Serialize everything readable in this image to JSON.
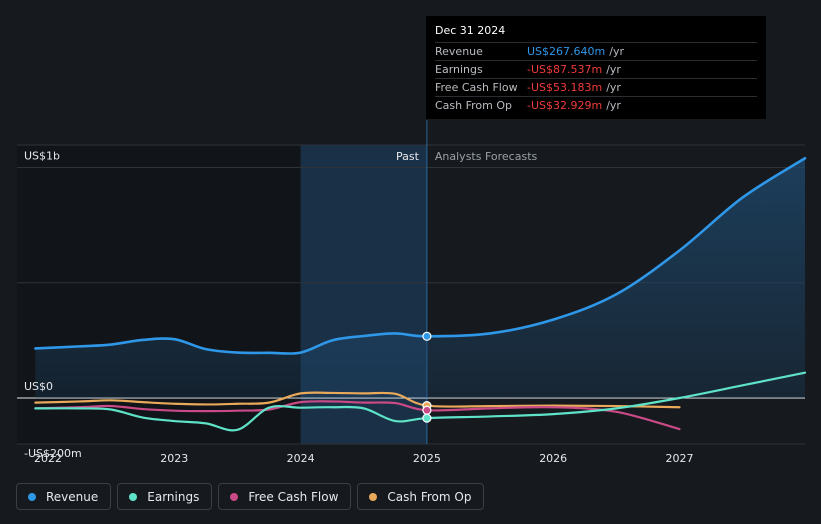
{
  "colors": {
    "background": "#161a1f",
    "revenue": "#2f97e8",
    "earnings": "#5fe3c8",
    "fcf": "#c94a86",
    "cfo": "#e8a95a",
    "past_shade": "#1d3a55",
    "grid": "#2e3338"
  },
  "chart_data": {
    "type": "line",
    "title": "",
    "y_unit": "US$m",
    "ylim": [
      -230,
      1050
    ],
    "xlim": [
      2021.9,
      2028.0
    ],
    "y_labels": [
      {
        "value": 1000,
        "text": "US$1b"
      },
      {
        "value": 0,
        "text": "US$0"
      },
      {
        "value": -200,
        "text": "-US$200m"
      }
    ],
    "x_ticks": [
      {
        "value": 2022,
        "text": "2022"
      },
      {
        "value": 2023,
        "text": "2023"
      },
      {
        "value": 2024,
        "text": "2024"
      },
      {
        "value": 2025,
        "text": "2025"
      },
      {
        "value": 2026,
        "text": "2026"
      },
      {
        "value": 2027,
        "text": "2027"
      }
    ],
    "past_label": "Past",
    "forecast_label": "Analysts Forecasts",
    "divider_x": 2025.0,
    "highlight_start": 2024.0,
    "series": [
      {
        "key": "revenue",
        "name": "Revenue",
        "color": "#2f97e8",
        "fill": true,
        "x": [
          2021.9,
          2022.25,
          2022.5,
          2022.75,
          2023.0,
          2023.25,
          2023.5,
          2023.75,
          2024.0,
          2024.25,
          2024.5,
          2024.75,
          2025.0,
          2025.5,
          2026.0,
          2026.5,
          2027.0,
          2027.5,
          2028.0
        ],
        "y": [
          215,
          224,
          232,
          252,
          255,
          212,
          197,
          196,
          197,
          250,
          269,
          280,
          267.64,
          280,
          340,
          450,
          640,
          870,
          1040
        ]
      },
      {
        "key": "earnings",
        "name": "Earnings",
        "color": "#5fe3c8",
        "fill": false,
        "x": [
          2021.9,
          2022.25,
          2022.5,
          2022.75,
          2023.0,
          2023.25,
          2023.5,
          2023.75,
          2024.0,
          2024.25,
          2024.5,
          2024.75,
          2025.0,
          2025.5,
          2026.0,
          2026.5,
          2027.0,
          2027.5,
          2028.0
        ],
        "y": [
          -45,
          -45,
          -50,
          -85,
          -100,
          -110,
          -138,
          -42,
          -42,
          -40,
          -45,
          -100,
          -87.537,
          -80,
          -70,
          -45,
          0,
          55,
          110
        ]
      },
      {
        "key": "fcf",
        "name": "Free Cash Flow",
        "color": "#c94a86",
        "fill": false,
        "x": [
          2021.9,
          2022.25,
          2022.5,
          2022.75,
          2023.0,
          2023.25,
          2023.5,
          2023.75,
          2024.0,
          2024.25,
          2024.5,
          2024.75,
          2025.0,
          2025.5,
          2026.0,
          2026.5,
          2027.0
        ],
        "y": [
          -45,
          -40,
          -35,
          -48,
          -55,
          -57,
          -55,
          -50,
          -18,
          -15,
          -20,
          -22,
          -53.183,
          -45,
          -40,
          -60,
          -135
        ]
      },
      {
        "key": "cfo",
        "name": "Cash From Op",
        "color": "#e8a95a",
        "fill": false,
        "x": [
          2021.9,
          2022.25,
          2022.5,
          2022.75,
          2023.0,
          2023.25,
          2023.5,
          2023.75,
          2024.0,
          2024.25,
          2024.5,
          2024.75,
          2025.0,
          2025.5,
          2026.0,
          2026.5,
          2027.0
        ],
        "y": [
          -20,
          -15,
          -10,
          -18,
          -25,
          -28,
          -25,
          -20,
          20,
          22,
          20,
          18,
          -32.929,
          -35,
          -33,
          -35,
          -40
        ]
      }
    ]
  },
  "tooltip": {
    "date": "Dec 31 2024",
    "rows": [
      {
        "label": "Revenue",
        "value": "US$267.640m",
        "unit": "/yr",
        "color": "#2f97e8"
      },
      {
        "label": "Earnings",
        "value": "-US$87.537m",
        "unit": "/yr",
        "color": "#ef3b3b"
      },
      {
        "label": "Free Cash Flow",
        "value": "-US$53.183m",
        "unit": "/yr",
        "color": "#ef3b3b"
      },
      {
        "label": "Cash From Op",
        "value": "-US$32.929m",
        "unit": "/yr",
        "color": "#ef3b3b"
      }
    ]
  },
  "legend": [
    {
      "label": "Revenue",
      "color": "#2f97e8"
    },
    {
      "label": "Earnings",
      "color": "#5fe3c8"
    },
    {
      "label": "Free Cash Flow",
      "color": "#c94a86"
    },
    {
      "label": "Cash From Op",
      "color": "#e8a95a"
    }
  ]
}
